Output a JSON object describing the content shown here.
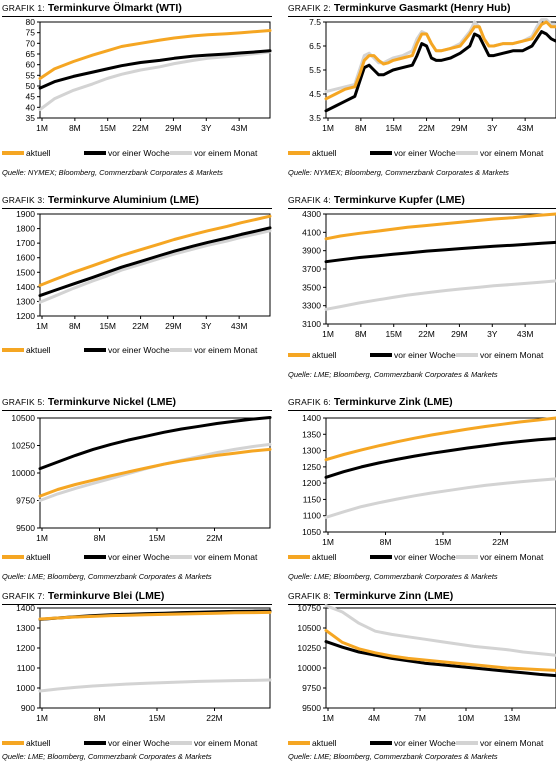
{
  "colors": {
    "aktuell": "#f5a623",
    "vor_einer_woche": "#000000",
    "vor_einem_monat": "#d3d3d3"
  },
  "panels": [
    {
      "title_prefix": "GRAFIK 1:",
      "title": "Terminkurve Ölmarkt (WTI)",
      "source": "Quelle: NYMEX; Bloomberg, Commerzbank Corporates & Markets",
      "legend": [
        "aktuell",
        "vor einer Woche",
        "vor einem Monat"
      ]
    },
    {
      "title_prefix": "GRAFIK 2:",
      "title": "Terminkurve Gasmarkt (Henry Hub)",
      "source": "Quelle: NYMEX; Bloomberg, Commerzbank Corporates & Markets",
      "legend": [
        "aktuell",
        "vor einer Woche",
        "vor einem Monat"
      ]
    },
    {
      "title_prefix": "GRAFIK 3:",
      "title": "Terminkurve Aluminium (LME)",
      "source": "",
      "legend": [
        "aktuell",
        "vor einer Woche",
        "vor einem Monat"
      ]
    },
    {
      "title_prefix": "GRAFIK 4:",
      "title": "Terminkurve Kupfer (LME)",
      "source": "Quelle: LME; Bloomberg, Commerzbank Corporates & Markets",
      "legend": [
        "aktuell",
        "vor einer Woche",
        "vor einem Monat"
      ]
    },
    {
      "title_prefix": "GRAFIK 5:",
      "title": "Terminkurve Nickel (LME)",
      "source": "Quelle: LME; Bloomberg, Commerzbank Corporates & Markets",
      "legend": [
        "aktuell",
        "vor einer Woche",
        "vor einem Monat"
      ]
    },
    {
      "title_prefix": "GRAFIK 6:",
      "title": "Terminkurve Zink (LME)",
      "source": "Quelle: LME; Bloomberg, Commerzbank Corporates & Markets",
      "legend": [
        "aktuell",
        "vor einer Woche",
        "vor einem Monat"
      ]
    },
    {
      "title_prefix": "GRAFIK 7:",
      "title": "Terminkurve Blei (LME)",
      "source": "Quelle: LME; Bloomberg, Commerzbank Corporates & Markets",
      "legend": [
        "aktuell",
        "vor einer Woche",
        "vor einem Monat"
      ]
    },
    {
      "title_prefix": "GRAFIK 8:",
      "title": "Terminkurve Zinn (LME)",
      "source": "Quelle: LME; Bloomberg, Commerzbank Corporates & Markets",
      "legend": [
        "aktuell",
        "vor einer Woche",
        "vor einem Monat"
      ]
    }
  ],
  "chart_data": [
    {
      "type": "line",
      "title": "Terminkurve Ölmarkt (WTI)",
      "categories": [
        "1M",
        "8M",
        "15M",
        "22M",
        "29M",
        "3Y",
        "43M"
      ],
      "x": [
        1,
        4,
        8,
        12,
        15,
        18,
        22,
        26,
        29,
        33,
        36,
        40,
        43,
        46,
        49
      ],
      "xlim": [
        1,
        49
      ],
      "ylim": [
        35,
        80
      ],
      "yticks": [
        35,
        40,
        45,
        50,
        55,
        60,
        65,
        70,
        75,
        80
      ],
      "series": [
        {
          "name": "aktuell",
          "color": "#f5a623",
          "values": [
            53.5,
            58,
            61.5,
            64.5,
            66.5,
            68.5,
            70,
            71.5,
            72.5,
            73.5,
            74,
            74.5,
            75,
            75.5,
            76
          ]
        },
        {
          "name": "vor einer Woche",
          "color": "#000000",
          "values": [
            49,
            52,
            54.5,
            56.5,
            58,
            59.5,
            61,
            62,
            63,
            64,
            64.5,
            65,
            65.5,
            66,
            66.5
          ]
        },
        {
          "name": "vor einem Monat",
          "color": "#d3d3d3",
          "values": [
            39,
            44,
            48,
            51,
            53.5,
            55.5,
            57.5,
            59,
            60.5,
            62,
            63,
            63.8,
            64.5,
            65.2,
            66
          ]
        }
      ]
    },
    {
      "type": "line",
      "title": "Terminkurve Gasmarkt (Henry Hub)",
      "categories": [
        "1M",
        "8M",
        "15M",
        "22M",
        "29M",
        "3Y",
        "43M"
      ],
      "x": [
        1,
        3,
        5,
        7,
        8,
        9,
        10,
        11,
        12,
        13,
        14,
        15,
        17,
        19,
        20,
        21,
        22,
        23,
        24,
        25,
        27,
        29,
        31,
        32,
        33,
        34,
        35,
        36,
        38,
        40,
        42,
        44,
        45,
        46,
        47,
        48,
        49
      ],
      "xlim": [
        1,
        49
      ],
      "ylim": [
        3.5,
        7.5
      ],
      "yticks": [
        3.5,
        4.5,
        5.5,
        6.5,
        7.5
      ],
      "series": [
        {
          "name": "aktuell",
          "color": "#f5a623",
          "values": [
            4.3,
            4.5,
            4.7,
            4.8,
            5.3,
            5.9,
            6.1,
            6.1,
            5.9,
            5.75,
            5.8,
            5.9,
            6.0,
            6.1,
            6.6,
            7.0,
            7.0,
            6.6,
            6.3,
            6.3,
            6.4,
            6.5,
            7.0,
            7.3,
            7.3,
            6.8,
            6.5,
            6.5,
            6.6,
            6.6,
            6.7,
            6.8,
            7.1,
            7.4,
            7.5,
            7.3,
            7.3
          ]
        },
        {
          "name": "vor einer Woche",
          "color": "#000000",
          "values": [
            3.8,
            4.0,
            4.2,
            4.4,
            5.0,
            5.6,
            5.7,
            5.5,
            5.3,
            5.3,
            5.4,
            5.5,
            5.6,
            5.7,
            6.1,
            6.6,
            6.5,
            6.0,
            5.9,
            5.9,
            6.0,
            6.2,
            6.5,
            7.0,
            6.9,
            6.5,
            6.1,
            6.1,
            6.2,
            6.3,
            6.3,
            6.5,
            6.8,
            7.1,
            7.0,
            6.8,
            6.7
          ]
        },
        {
          "name": "vor einem Monat",
          "color": "#d3d3d3",
          "values": [
            4.6,
            4.7,
            4.8,
            4.9,
            5.5,
            6.1,
            6.2,
            6.0,
            5.8,
            5.8,
            5.9,
            6.0,
            6.1,
            6.3,
            6.8,
            7.1,
            7.0,
            6.6,
            6.3,
            6.3,
            6.4,
            6.6,
            7.1,
            7.5,
            7.3,
            6.8,
            6.5,
            6.5,
            6.6,
            6.6,
            6.7,
            6.9,
            7.3,
            7.6,
            7.6,
            7.4,
            7.4
          ]
        }
      ]
    },
    {
      "type": "line",
      "title": "Terminkurve Aluminium (LME)",
      "categories": [
        "1M",
        "8M",
        "15M",
        "22M",
        "29M",
        "3Y",
        "43M"
      ],
      "x": [
        1,
        4,
        8,
        12,
        15,
        18,
        22,
        26,
        29,
        33,
        36,
        40,
        43,
        46,
        49
      ],
      "xlim": [
        1,
        49
      ],
      "ylim": [
        1200,
        1900
      ],
      "yticks": [
        1200,
        1300,
        1400,
        1500,
        1600,
        1700,
        1800,
        1900
      ],
      "series": [
        {
          "name": "aktuell",
          "color": "#f5a623",
          "values": [
            1410,
            1450,
            1500,
            1545,
            1580,
            1615,
            1655,
            1695,
            1725,
            1760,
            1785,
            1815,
            1840,
            1862,
            1885
          ]
        },
        {
          "name": "vor einer Woche",
          "color": "#000000",
          "values": [
            1340,
            1375,
            1420,
            1465,
            1500,
            1535,
            1575,
            1615,
            1645,
            1680,
            1705,
            1735,
            1760,
            1782,
            1805
          ]
        },
        {
          "name": "vor einem Monat",
          "color": "#d3d3d3",
          "values": [
            1295,
            1335,
            1390,
            1440,
            1475,
            1515,
            1555,
            1595,
            1625,
            1660,
            1685,
            1715,
            1740,
            1763,
            1785
          ]
        }
      ]
    },
    {
      "type": "line",
      "title": "Terminkurve Kupfer (LME)",
      "categories": [
        "1M",
        "8M",
        "15M",
        "22M",
        "29M",
        "3Y",
        "43M"
      ],
      "x": [
        1,
        4,
        8,
        12,
        15,
        18,
        22,
        26,
        29,
        33,
        36,
        40,
        43,
        46,
        49
      ],
      "xlim": [
        1,
        49
      ],
      "ylim": [
        3100,
        4300
      ],
      "yticks": [
        3100,
        3300,
        3500,
        3700,
        3900,
        4100,
        4300
      ],
      "series": [
        {
          "name": "aktuell",
          "color": "#f5a623",
          "values": [
            4030,
            4060,
            4090,
            4115,
            4135,
            4155,
            4175,
            4195,
            4210,
            4230,
            4245,
            4260,
            4275,
            4288,
            4300
          ]
        },
        {
          "name": "vor einer Woche",
          "color": "#000000",
          "values": [
            3780,
            3800,
            3825,
            3845,
            3860,
            3875,
            3895,
            3910,
            3922,
            3937,
            3948,
            3960,
            3970,
            3980,
            3990
          ]
        },
        {
          "name": "vor einem Monat",
          "color": "#d3d3d3",
          "values": [
            3260,
            3290,
            3330,
            3365,
            3390,
            3415,
            3440,
            3465,
            3482,
            3502,
            3517,
            3532,
            3545,
            3557,
            3570
          ]
        }
      ]
    },
    {
      "type": "line",
      "title": "Terminkurve Nickel (LME)",
      "categories": [
        "1M",
        "8M",
        "15M",
        "22M"
      ],
      "x": [
        1,
        3,
        5,
        7,
        9,
        11,
        13,
        15,
        17,
        19,
        21,
        23,
        25,
        27
      ],
      "xlim": [
        1,
        27
      ],
      "ylim": [
        9500,
        10500
      ],
      "yticks": [
        9500,
        9750,
        10000,
        10250,
        10500
      ],
      "series": [
        {
          "name": "aktuell",
          "color": "#f5a623",
          "values": [
            9790,
            9850,
            9895,
            9935,
            9975,
            10010,
            10045,
            10080,
            10110,
            10135,
            10160,
            10180,
            10200,
            10215
          ]
        },
        {
          "name": "vor einer Woche",
          "color": "#000000",
          "values": [
            10040,
            10100,
            10160,
            10215,
            10260,
            10300,
            10335,
            10370,
            10400,
            10425,
            10450,
            10470,
            10490,
            10505
          ]
        },
        {
          "name": "vor einem Monat",
          "color": "#d3d3d3",
          "values": [
            9750,
            9810,
            9860,
            9905,
            9950,
            9995,
            10040,
            10080,
            10115,
            10150,
            10185,
            10215,
            10240,
            10260
          ]
        }
      ]
    },
    {
      "type": "line",
      "title": "Terminkurve Zink (LME)",
      "categories": [
        "1M",
        "8M",
        "15M",
        "22M"
      ],
      "x": [
        1,
        3,
        5,
        7,
        9,
        11,
        13,
        15,
        17,
        19,
        21,
        23,
        25,
        27
      ],
      "xlim": [
        1,
        27
      ],
      "ylim": [
        1050,
        1400
      ],
      "yticks": [
        1050,
        1100,
        1150,
        1200,
        1250,
        1300,
        1350,
        1400
      ],
      "series": [
        {
          "name": "aktuell",
          "color": "#f5a623",
          "values": [
            1272,
            1288,
            1302,
            1315,
            1327,
            1338,
            1348,
            1357,
            1366,
            1374,
            1381,
            1388,
            1394,
            1400
          ]
        },
        {
          "name": "vor einer Woche",
          "color": "#000000",
          "values": [
            1218,
            1235,
            1250,
            1262,
            1273,
            1283,
            1292,
            1300,
            1308,
            1315,
            1322,
            1328,
            1333,
            1337
          ]
        },
        {
          "name": "vor einem Monat",
          "color": "#d3d3d3",
          "values": [
            1095,
            1112,
            1128,
            1140,
            1151,
            1161,
            1170,
            1178,
            1186,
            1193,
            1199,
            1204,
            1209,
            1213
          ]
        }
      ]
    },
    {
      "type": "line",
      "title": "Terminkurve Blei (LME)",
      "categories": [
        "1M",
        "8M",
        "15M",
        "22M"
      ],
      "x": [
        1,
        3,
        5,
        7,
        9,
        11,
        13,
        15,
        17,
        19,
        21,
        23,
        25,
        27
      ],
      "xlim": [
        1,
        27
      ],
      "ylim": [
        900,
        1400
      ],
      "yticks": [
        900,
        1000,
        1100,
        1200,
        1300,
        1400
      ],
      "series": [
        {
          "name": "aktuell",
          "color": "#f5a623",
          "values": [
            1345,
            1350,
            1355,
            1358,
            1362,
            1364,
            1366,
            1368,
            1370,
            1372,
            1374,
            1376,
            1377,
            1378
          ]
        },
        {
          "name": "vor einer Woche",
          "color": "#000000",
          "values": [
            1343,
            1350,
            1356,
            1362,
            1366,
            1369,
            1372,
            1374,
            1377,
            1379,
            1381,
            1383,
            1384,
            1385
          ]
        },
        {
          "name": "vor einem Monat",
          "color": "#d3d3d3",
          "values": [
            985,
            995,
            1003,
            1010,
            1015,
            1020,
            1024,
            1027,
            1030,
            1033,
            1035,
            1037,
            1038,
            1040
          ]
        }
      ]
    },
    {
      "type": "line",
      "title": "Terminkurve Zinn (LME)",
      "categories": [
        "1M",
        "4M",
        "7M",
        "10M",
        "13M"
      ],
      "x": [
        1,
        2,
        3,
        4,
        5,
        6,
        7,
        8,
        9,
        10,
        11,
        12,
        13,
        14,
        15
      ],
      "xlim": [
        1,
        15
      ],
      "ylim": [
        9500,
        10750
      ],
      "yticks": [
        9500,
        9750,
        10000,
        10250,
        10500,
        10750
      ],
      "series": [
        {
          "name": "aktuell",
          "color": "#f5a623",
          "values": [
            10470,
            10320,
            10240,
            10190,
            10150,
            10120,
            10100,
            10080,
            10060,
            10040,
            10020,
            10000,
            9990,
            9980,
            9970
          ]
        },
        {
          "name": "vor einer Woche",
          "color": "#000000",
          "values": [
            10330,
            10260,
            10200,
            10160,
            10120,
            10090,
            10060,
            10040,
            10020,
            10000,
            9980,
            9960,
            9940,
            9920,
            9905
          ]
        },
        {
          "name": "vor einem Monat",
          "color": "#d3d3d3",
          "values": [
            10780,
            10700,
            10560,
            10460,
            10420,
            10390,
            10360,
            10330,
            10300,
            10270,
            10250,
            10230,
            10200,
            10180,
            10160
          ]
        }
      ]
    }
  ]
}
